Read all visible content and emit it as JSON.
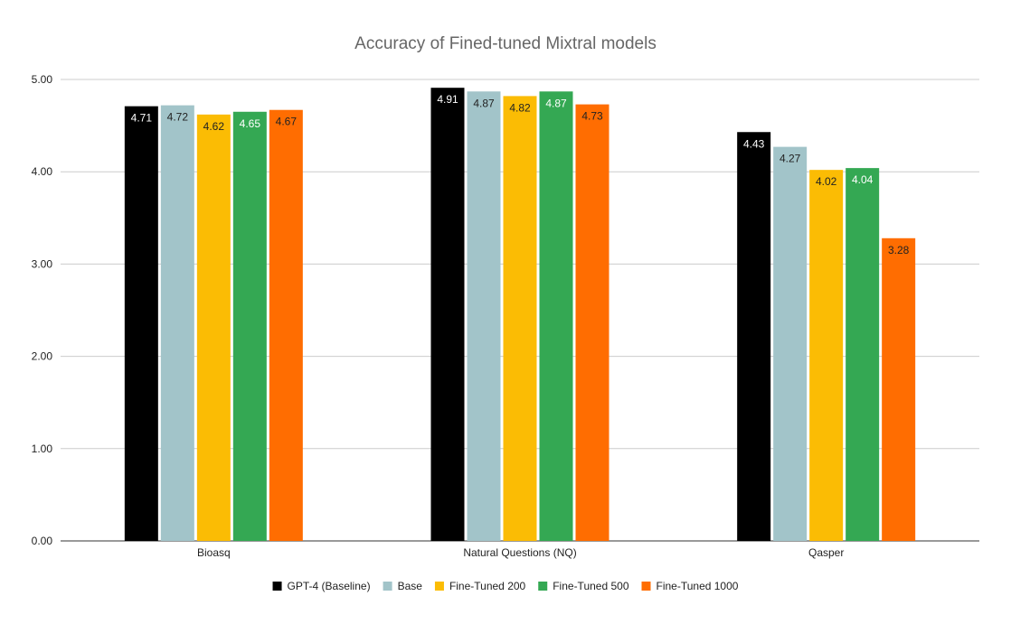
{
  "chart_data": {
    "type": "bar",
    "title": "Accuracy of Fined-tuned Mixtral models",
    "xlabel": "",
    "ylabel": "",
    "ylim": [
      0,
      5
    ],
    "yticks": [
      "0.00",
      "1.00",
      "2.00",
      "3.00",
      "4.00",
      "5.00"
    ],
    "grid": true,
    "legend_position": "bottom",
    "categories": [
      "Bioasq",
      "Natural Questions (NQ)",
      "Qasper"
    ],
    "series": [
      {
        "name": "GPT-4 (Baseline)",
        "color": "#000000",
        "label_color": "#ffffff",
        "values": [
          4.71,
          4.91,
          4.43
        ],
        "labels": [
          "4.71",
          "4.91",
          "4.43"
        ]
      },
      {
        "name": "Base",
        "color": "#a2c4c9",
        "label_color": "#222222",
        "values": [
          4.72,
          4.87,
          4.27
        ],
        "labels": [
          "4.72",
          "4.87",
          "4.27"
        ]
      },
      {
        "name": "Fine-Tuned 200",
        "color": "#fbbc04",
        "label_color": "#222222",
        "values": [
          4.62,
          4.82,
          4.02
        ],
        "labels": [
          "4.62",
          "4.82",
          "4.02"
        ]
      },
      {
        "name": "Fine-Tuned 500",
        "color": "#34a853",
        "label_color": "#ffffff",
        "values": [
          4.65,
          4.87,
          4.04
        ],
        "labels": [
          "4.65",
          "4.87",
          "4.04"
        ]
      },
      {
        "name": "Fine-Tuned 1000",
        "color": "#ff6d01",
        "label_color": "#222222",
        "values": [
          4.67,
          4.73,
          3.28
        ],
        "labels": [
          "4.67",
          "4.73",
          "3.28"
        ]
      }
    ]
  }
}
